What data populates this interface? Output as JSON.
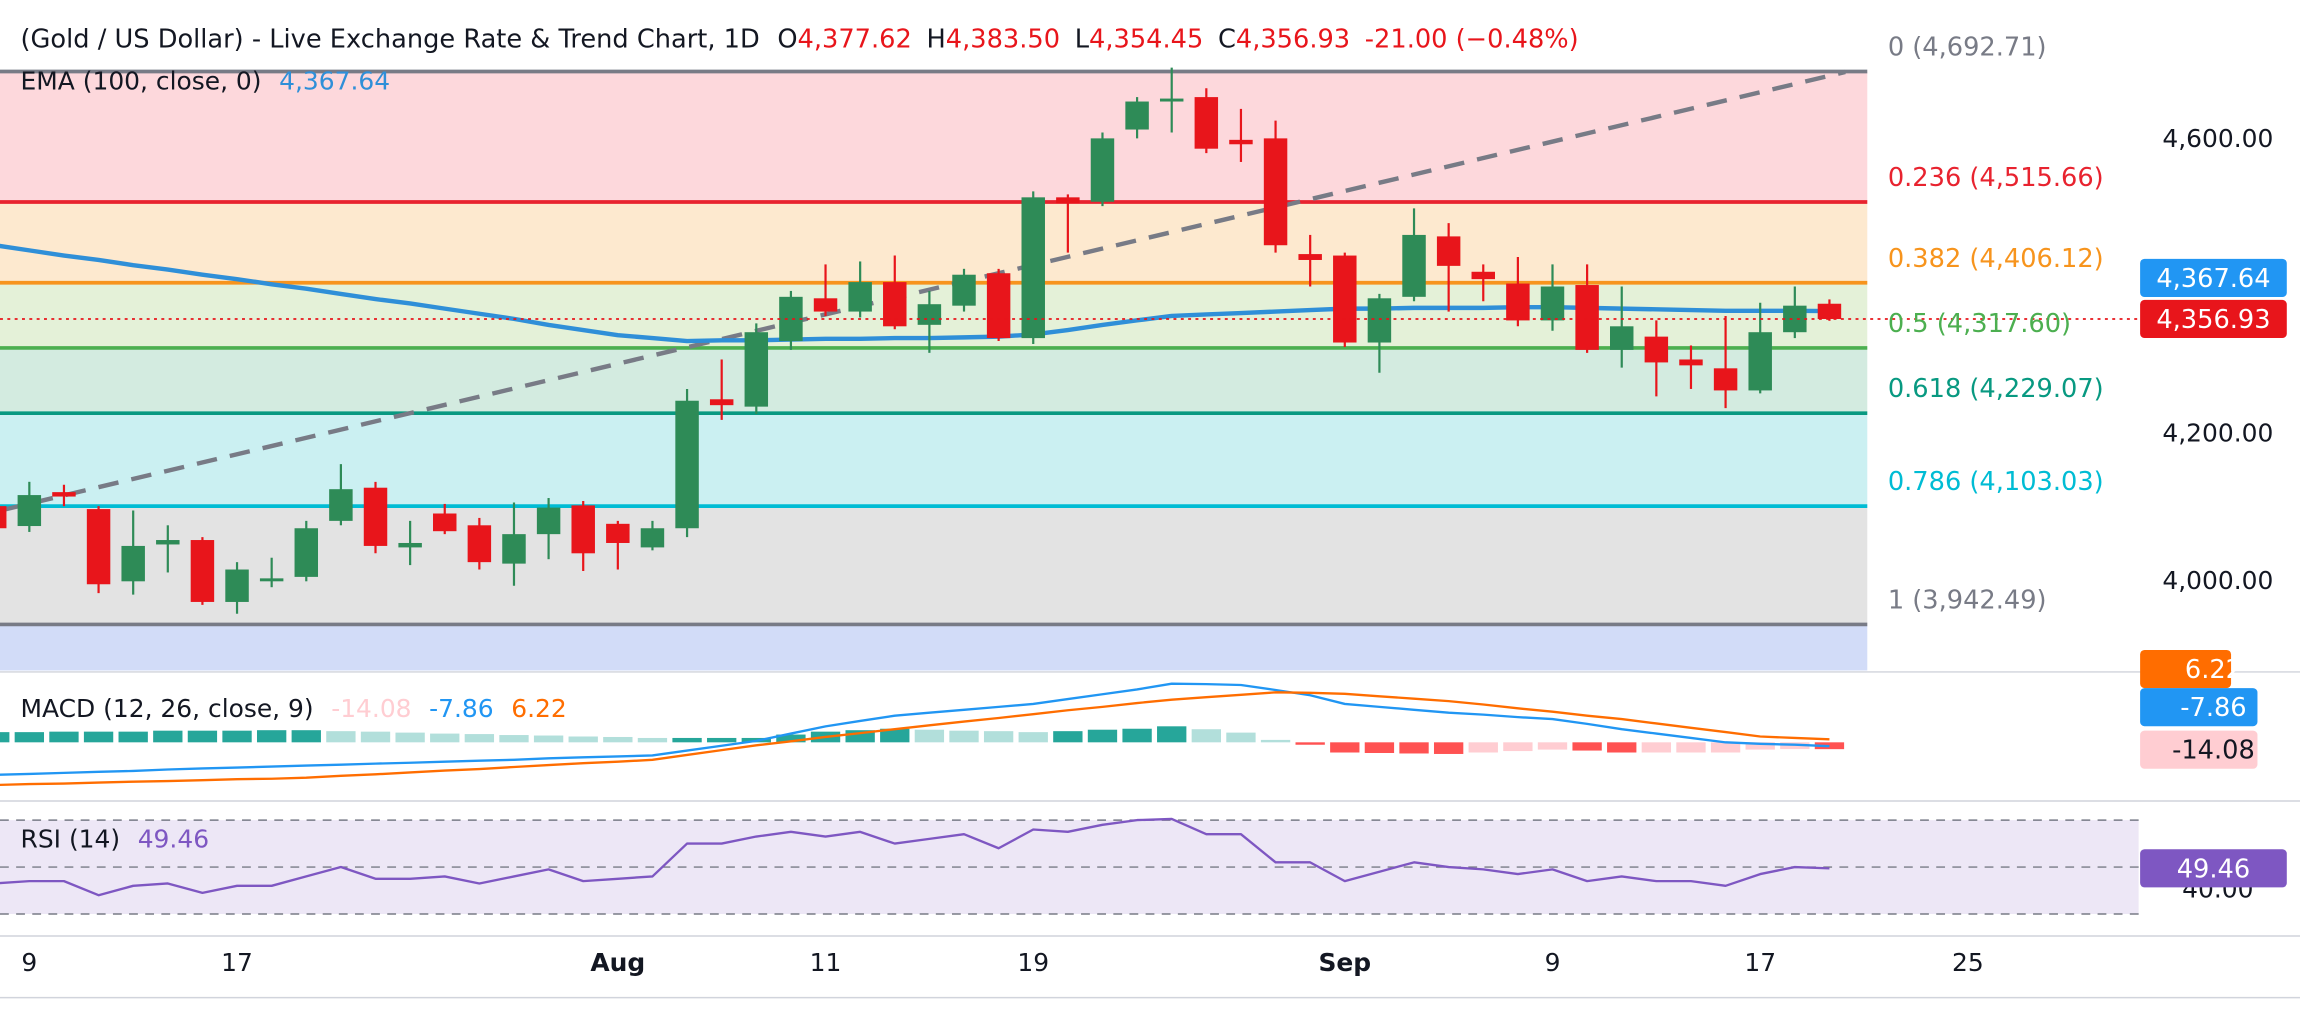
{
  "header": {
    "title": "(Gold / US Dollar) - Live Exchange Rate & Trend Chart, 1D",
    "ohlc": [
      {
        "key": "O",
        "value": "4,377.62"
      },
      {
        "key": "H",
        "value": "4,383.50"
      },
      {
        "key": "L",
        "value": "4,354.45"
      },
      {
        "key": "C",
        "value": "4,356.93"
      }
    ],
    "change": "-21.00 (−0.48%)"
  },
  "chart_data": [
    {
      "type": "candlestick",
      "categories": [
        null,
        "9",
        null,
        null,
        null,
        null,
        null,
        "17",
        null,
        null,
        null,
        null,
        null,
        null,
        null,
        null,
        null,
        null,
        "Aug",
        null,
        null,
        null,
        null,
        null,
        "11",
        null,
        null,
        null,
        null,
        null,
        "19",
        null,
        null,
        null,
        null,
        null,
        null,
        null,
        null,
        "Sep",
        null,
        null,
        null,
        null,
        null,
        "9",
        null,
        null,
        null,
        null,
        null,
        "17",
        null,
        null,
        null,
        null,
        null,
        "25"
      ],
      "open": [
        4103,
        4076,
        4122,
        4099,
        4001,
        4051,
        4057,
        3973,
        4001,
        4007,
        4083,
        4128,
        4047,
        4093,
        4077,
        4025,
        4065,
        4104,
        4079,
        4047,
        4073,
        4248,
        4238,
        4327,
        4385,
        4367,
        4407,
        4349,
        4375,
        4419,
        4331,
        4522,
        4516,
        4614,
        4652,
        4658,
        4600,
        4602,
        4445,
        4443,
        4325,
        4387,
        4469,
        4421,
        4405,
        4355,
        4403,
        4315,
        4333,
        4302,
        4290,
        4260,
        4339,
        4377.62,
        null,
        null,
        null,
        null
      ],
      "high": [
        4110,
        4136,
        4132,
        4103,
        4097,
        4077,
        4061,
        4027,
        4033,
        4083,
        4160,
        4136,
        4083,
        4106,
        4087,
        4108,
        4114,
        4110,
        4083,
        4083,
        4262,
        4302,
        4351,
        4395,
        4431,
        4435,
        4443,
        4395,
        4425,
        4425,
        4530,
        4526,
        4610,
        4658,
        4698,
        4670,
        4642,
        4626,
        4471,
        4447,
        4391,
        4507,
        4487,
        4431,
        4441,
        4431,
        4431,
        4401,
        4355,
        4321,
        4361,
        4379,
        4401,
        4383.5,
        null,
        null,
        null,
        null
      ],
      "low": [
        4065,
        4068,
        4103,
        3985,
        3983,
        4013,
        3969,
        3957,
        3993,
        4001,
        4077,
        4039,
        4023,
        4065,
        4017,
        3995,
        4031,
        4015,
        4017,
        4043,
        4061,
        4220,
        4228,
        4315,
        4361,
        4359,
        4343,
        4311,
        4367,
        4327,
        4323,
        4447,
        4510,
        4602,
        4610,
        4582,
        4570,
        4447,
        4401,
        4319,
        4284,
        4381,
        4367,
        4381,
        4347,
        4341,
        4311,
        4291,
        4252,
        4262,
        4236,
        4256,
        4331,
        4354.45,
        null,
        null,
        null,
        null
      ],
      "close": [
        4073,
        4118,
        4116,
        3997,
        4049,
        4057,
        3973,
        4017,
        4005,
        4073,
        4126,
        4049,
        4053,
        4069,
        4027,
        4065,
        4101,
        4039,
        4053,
        4073,
        4246,
        4240,
        4339,
        4387,
        4367,
        4407,
        4347,
        4377,
        4417,
        4331,
        4522,
        4514,
        4602,
        4652,
        4656,
        4588,
        4594,
        4457,
        4437,
        4325,
        4385,
        4471,
        4429,
        4411,
        4355,
        4401,
        4315,
        4347,
        4298,
        4294,
        4260,
        4339,
        4375,
        4356.93,
        null,
        null,
        null,
        null
      ],
      "last_label": "4,356.93",
      "up_color": "#2e8b57",
      "down_color": "#e8151b",
      "ylim": [
        3880,
        4700
      ],
      "yticks": [
        {
          "value": 4000,
          "label": "4,000.00"
        },
        {
          "value": 4200,
          "label": "4,200.00"
        },
        {
          "value": 4600,
          "label": "4,600.00"
        }
      ],
      "ema": {
        "name": "EMA (100, close, 0)",
        "color": "#2f8fd8",
        "values": [
          4457,
          4450,
          4443,
          4437,
          4430,
          4424,
          4417,
          4411,
          4404,
          4398,
          4391,
          4384,
          4378,
          4371,
          4364,
          4357,
          4349,
          4342,
          4335,
          4331,
          4327,
          4328,
          4328,
          4329,
          4330,
          4330,
          4331,
          4331,
          4332,
          4333,
          4336,
          4342,
          4349,
          4355,
          4361,
          4363,
          4365,
          4367,
          4369,
          4371,
          4371,
          4372,
          4372,
          4372,
          4373,
          4373,
          4372,
          4371,
          4370,
          4369,
          4368,
          4368,
          4368,
          4367.64,
          null,
          null,
          null,
          null
        ],
        "last_label": "4,367.64"
      },
      "fib_levels": [
        {
          "value": 4692.71,
          "label": "0 (4,692.71)",
          "color": "#787b86",
          "fill": "#fdd8dc"
        },
        {
          "value": 4515.66,
          "label": "0.236 (4,515.66)",
          "color": "#e8232f",
          "fill": "#fde9cf"
        },
        {
          "value": 4406.12,
          "label": "0.382 (4,406.12)",
          "color": "#f7941d",
          "fill": "#e4f1d8"
        },
        {
          "value": 4317.6,
          "label": "0.5 (4,317.60)",
          "color": "#4caf50",
          "fill": "#d3ebe0"
        },
        {
          "value": 4229.07,
          "label": "0.618 (4,229.07)",
          "color": "#089981",
          "fill": "#cbf0f2"
        },
        {
          "value": 4103.03,
          "label": "0.786 (4,103.03)",
          "color": "#00bcd4",
          "fill": "#e3e3e3"
        },
        {
          "value": 3942.49,
          "label": "1 (3,942.49)",
          "color": "#787b86",
          "fill": "#d2dcf8"
        }
      ]
    },
    {
      "type": "macd",
      "title": "MACD (12, 26, close, 9)",
      "ylim": [
        -118,
        139
      ],
      "histogram": {
        "values": [
          21,
          21,
          22,
          22,
          22,
          24,
          24,
          24,
          25,
          25,
          23,
          22,
          20,
          18,
          17,
          15,
          14,
          12,
          11,
          9,
          9,
          9,
          9,
          16,
          22,
          25,
          28,
          26,
          24,
          23,
          21,
          23,
          26,
          28,
          33,
          27,
          20,
          5,
          -5,
          -21,
          -22,
          -23,
          -24,
          -21,
          -18,
          -15,
          -17,
          -21,
          -21,
          -21,
          -21,
          -15,
          -14,
          -14.08,
          null,
          null,
          null,
          null
        ],
        "colors": [
          "#26a69a",
          "#b2dfdb",
          "#ff5252",
          "#ffcdd2"
        ]
      },
      "macd": {
        "color": "#2196f3",
        "values": [
          -67,
          -65,
          -63,
          -61,
          -59,
          -56,
          -54,
          -52,
          -50,
          -48,
          -46,
          -44,
          -42,
          -40,
          -38,
          -36,
          -33,
          -31,
          -29,
          -27,
          -17,
          -7,
          3,
          18,
          33,
          44,
          55,
          61,
          67,
          73,
          79,
          89,
          99,
          109,
          121,
          120,
          118,
          108,
          97,
          79,
          73,
          67,
          61,
          57,
          52,
          48,
          38,
          27,
          18,
          9,
          0,
          -3,
          -5,
          -7.86,
          null,
          null,
          null,
          null
        ]
      },
      "signal": {
        "color": "#ff6d00",
        "values": [
          -88,
          -86,
          -85,
          -83,
          -81,
          -80,
          -78,
          -76,
          -75,
          -73,
          -69,
          -66,
          -62,
          -58,
          -55,
          -51,
          -47,
          -43,
          -40,
          -36,
          -26,
          -16,
          -6,
          2,
          11,
          19,
          27,
          35,
          43,
          50,
          58,
          66,
          73,
          81,
          88,
          93,
          98,
          103,
          102,
          100,
          95,
          90,
          85,
          78,
          70,
          63,
          55,
          48,
          39,
          30,
          21,
          12,
          9,
          6.22,
          null,
          null,
          null,
          null
        ]
      }
    },
    {
      "type": "line",
      "title": "RSI (14)",
      "color": "#7e57c2",
      "band_fill": "#ede7f6",
      "ylim": [
        27.5,
        76.9
      ],
      "yticks": [
        {
          "value": 40,
          "label": "40.00"
        }
      ],
      "levels": [
        70,
        50,
        30
      ],
      "values": [
        43,
        44,
        44,
        38,
        42,
        43,
        39,
        42,
        42,
        46,
        50,
        45,
        45,
        46,
        43,
        46,
        49,
        44,
        45,
        46,
        60,
        60,
        63,
        65,
        63,
        65,
        60,
        62,
        64,
        58,
        66,
        65,
        68,
        70,
        70.5,
        64,
        64,
        52,
        52,
        44,
        48,
        52,
        50,
        49,
        47,
        49,
        44,
        46,
        44,
        44,
        42,
        47,
        50,
        49.46,
        null,
        null,
        null,
        null
      ]
    }
  ]
}
